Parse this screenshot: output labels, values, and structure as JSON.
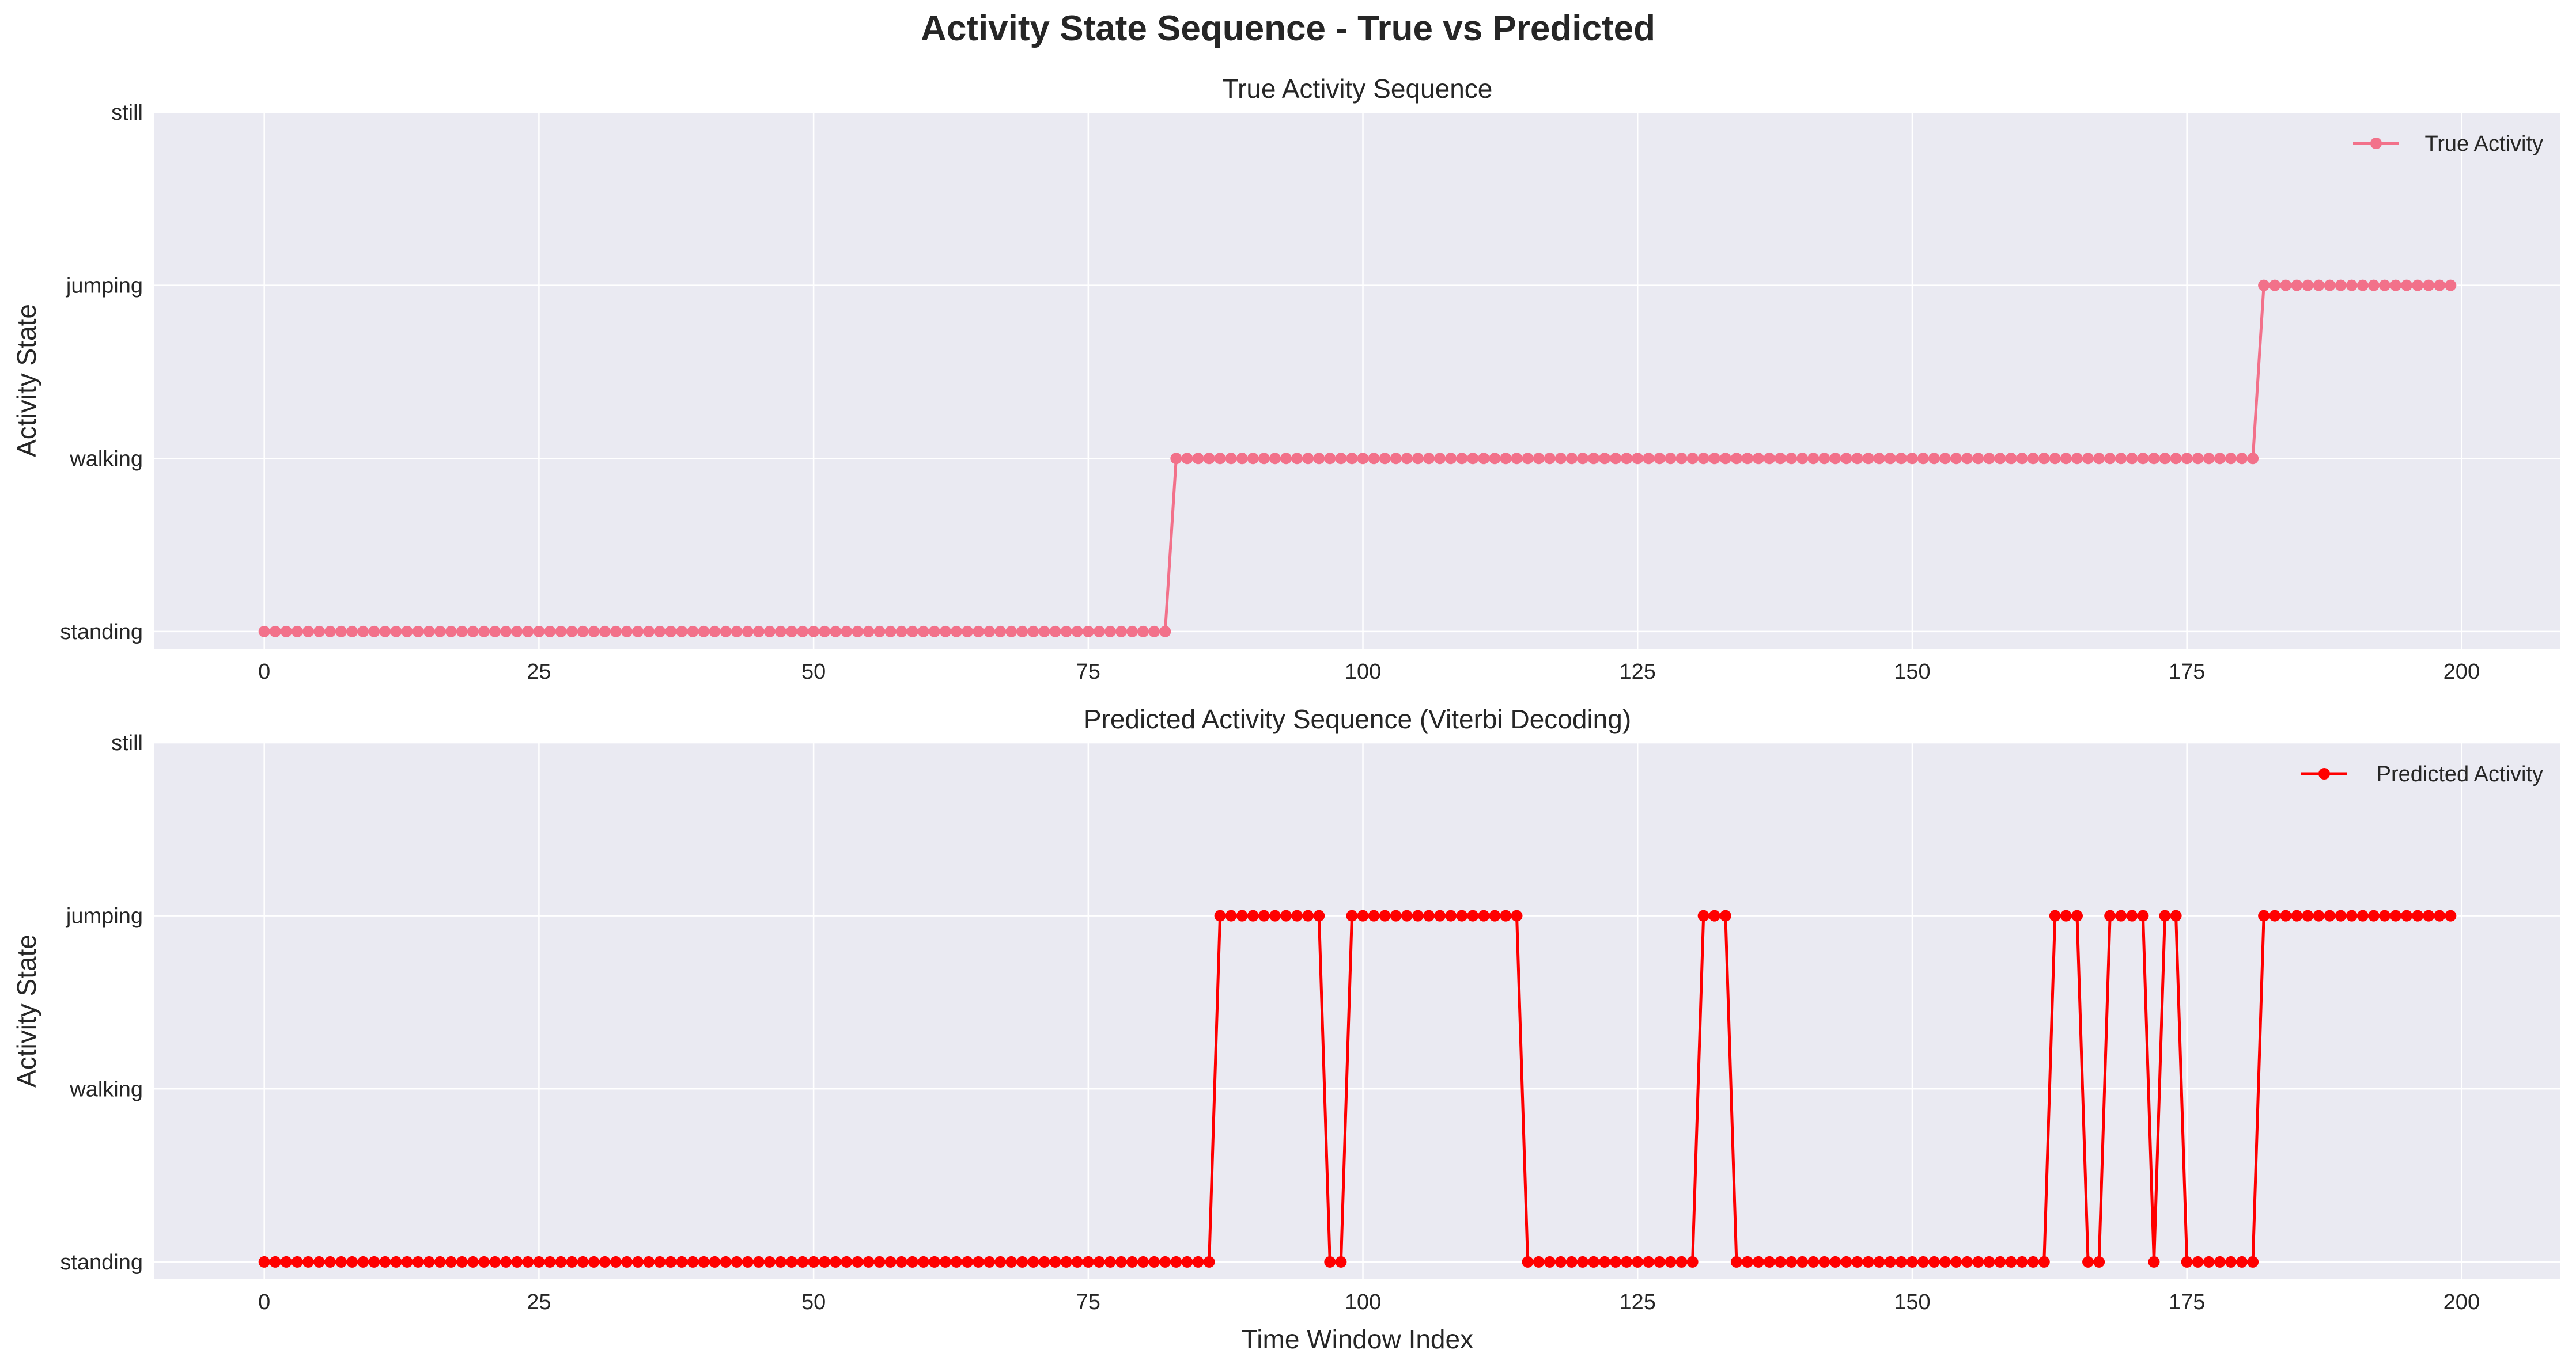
{
  "figure": {
    "suptitle": "Activity State Sequence - True vs Predicted"
  },
  "chart_data": [
    {
      "type": "line",
      "title": "True Activity Sequence",
      "xlabel": "",
      "ylabel": "Activity State",
      "xlim": [
        -10,
        209
      ],
      "ylim": [
        -0.1,
        3
      ],
      "xticks": [
        0,
        25,
        50,
        75,
        100,
        125,
        150,
        175,
        200
      ],
      "yticks": [
        0,
        1,
        2,
        3
      ],
      "ytick_labels": [
        "standing",
        "walking",
        "jumping",
        "still"
      ],
      "grid": true,
      "legend": {
        "position": "top-right",
        "entries": [
          "True Activity"
        ]
      },
      "series": [
        {
          "name": "True Activity",
          "color": "#f2718a",
          "marker": "circle",
          "segments": [
            {
              "from": 0,
              "to": 82,
              "state": 0
            },
            {
              "from": 83,
              "to": 181,
              "state": 1
            },
            {
              "from": 182,
              "to": 199,
              "state": 2
            }
          ]
        }
      ]
    },
    {
      "type": "line",
      "title": "Predicted Activity Sequence (Viterbi Decoding)",
      "xlabel": "Time Window Index",
      "ylabel": "Activity State",
      "xlim": [
        -10,
        209
      ],
      "ylim": [
        -0.1,
        3
      ],
      "xticks": [
        0,
        25,
        50,
        75,
        100,
        125,
        150,
        175,
        200
      ],
      "yticks": [
        0,
        1,
        2,
        3
      ],
      "ytick_labels": [
        "standing",
        "walking",
        "jumping",
        "still"
      ],
      "grid": true,
      "legend": {
        "position": "top-right",
        "entries": [
          "Predicted Activity"
        ]
      },
      "series": [
        {
          "name": "Predicted Activity",
          "color": "#ff0000",
          "marker": "circle",
          "segments": [
            {
              "from": 0,
              "to": 86,
              "state": 0
            },
            {
              "from": 87,
              "to": 96,
              "state": 2
            },
            {
              "from": 97,
              "to": 98,
              "state": 0
            },
            {
              "from": 99,
              "to": 114,
              "state": 2
            },
            {
              "from": 115,
              "to": 130,
              "state": 0
            },
            {
              "from": 131,
              "to": 133,
              "state": 2
            },
            {
              "from": 134,
              "to": 162,
              "state": 0
            },
            {
              "from": 163,
              "to": 165,
              "state": 2
            },
            {
              "from": 166,
              "to": 167,
              "state": 0
            },
            {
              "from": 168,
              "to": 171,
              "state": 2
            },
            {
              "from": 172,
              "to": 172,
              "state": 0
            },
            {
              "from": 173,
              "to": 174,
              "state": 2
            },
            {
              "from": 175,
              "to": 181,
              "state": 0
            },
            {
              "from": 182,
              "to": 199,
              "state": 2
            }
          ]
        }
      ]
    }
  ]
}
